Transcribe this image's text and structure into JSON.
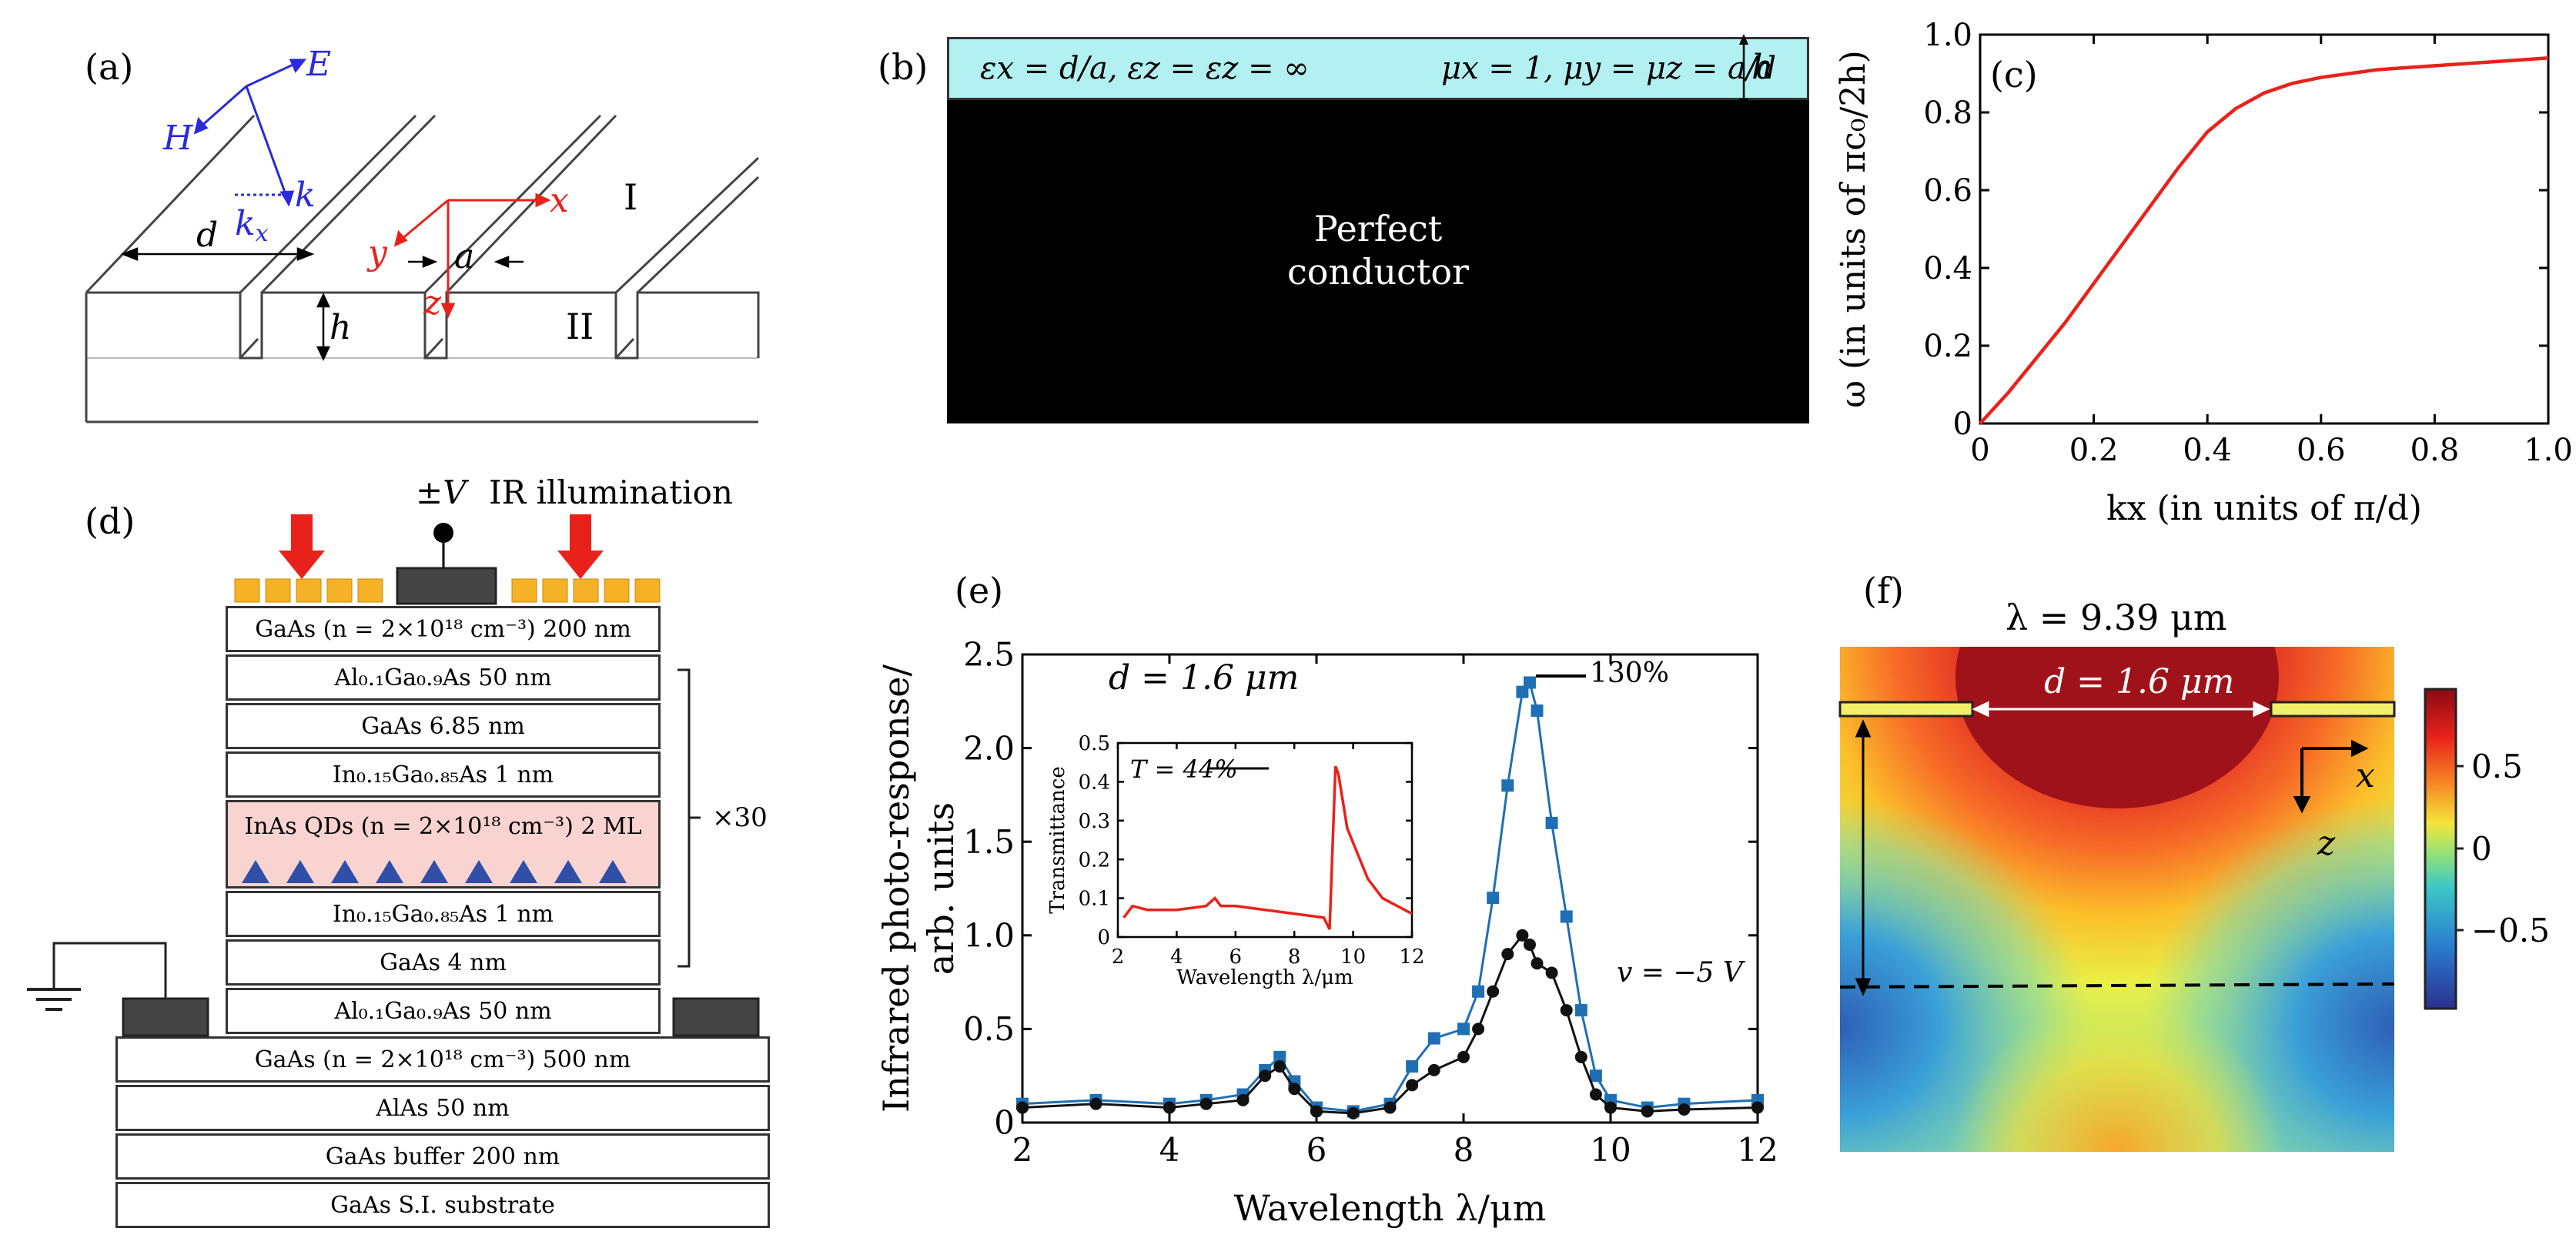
{
  "panels": {
    "a": {
      "label": "(a)",
      "H": "H",
      "E": "E",
      "k": "k",
      "kx": "k",
      "kx_sub": "x",
      "d": "d",
      "a": "a",
      "h": "h",
      "x": "x",
      "y": "y",
      "z": "z",
      "region1": "I",
      "region2": "II"
    },
    "b": {
      "label": "(b)",
      "eps_text": "ε",
      "metamaterial_text": "εx = d/a,  εz = εz = ∞",
      "mu_text": "μx = 1,  μy = μz = a/d",
      "h": "h",
      "conductor_line1": "Perfect",
      "conductor_line2": "conductor"
    },
    "c": {
      "label": "(c)",
      "ylabel": "ω (in units of πc₀/2h)",
      "xlabel": "kx (in units of π/d)"
    },
    "d": {
      "label": "(d)",
      "bias": "±V",
      "illumination": "IR illumination",
      "repeat": "×30",
      "layers": [
        "GaAs (n = 2×10¹⁸ cm⁻³) 200 nm",
        "Al₀.₁Ga₀.₉As 50 nm",
        "GaAs 6.85 nm",
        "In₀.₁₅Ga₀.₈₅As 1 nm",
        "InAs QDs (n = 2×10¹⁸ cm⁻³) 2 ML",
        "In₀.₁₅Ga₀.₈₅As 1 nm",
        "GaAs 4 nm",
        "Al₀.₁Ga₀.₉As 50 nm",
        "GaAs (n = 2×10¹⁸ cm⁻³) 500 nm",
        "AlAs 50 nm",
        "GaAs buffer 200 nm",
        "GaAs S.I. substrate"
      ]
    },
    "e": {
      "label": "(e)",
      "ylabel_line1": "Infrared photo-response/",
      "ylabel_line2": "arb. units",
      "xlabel": "Wavelength λ/μm",
      "d_annot": "d = 1.6 μm",
      "peak_annot": "130%",
      "bias_annot": "v = −5 V",
      "inset_T": "T = 44%",
      "inset_ylabel": "Transmittance",
      "inset_xlabel": "Wavelength λ/μm"
    },
    "f": {
      "label": "(f)",
      "lambda": "λ = 9.39 μm",
      "d_annot": "d = 1.6 μm",
      "x": "x",
      "z": "z",
      "colorbar_ticks": [
        "0.5",
        "0",
        "−0.5"
      ]
    }
  },
  "chart_data": [
    {
      "type": "line",
      "panel": "c",
      "xlabel": "kx (in units of π/d)",
      "ylabel": "ω (in units of πc₀/2h)",
      "xlim": [
        0,
        1.0
      ],
      "ylim": [
        0,
        1.0
      ],
      "xticks": [
        "0",
        "0.2",
        "0.4",
        "0.6",
        "0.8",
        "1.0"
      ],
      "yticks": [
        "0",
        "0.2",
        "0.4",
        "0.6",
        "0.8",
        "1.0"
      ],
      "series": [
        {
          "color": "#e8221b",
          "x": [
            0,
            0.05,
            0.1,
            0.15,
            0.2,
            0.25,
            0.3,
            0.35,
            0.4,
            0.45,
            0.5,
            0.55,
            0.6,
            0.65,
            0.7,
            0.75,
            0.8,
            0.85,
            0.9,
            0.95,
            1.0
          ],
          "y": [
            0,
            0.08,
            0.17,
            0.26,
            0.36,
            0.46,
            0.56,
            0.66,
            0.75,
            0.81,
            0.85,
            0.875,
            0.89,
            0.9,
            0.91,
            0.915,
            0.92,
            0.925,
            0.93,
            0.935,
            0.94
          ]
        }
      ]
    },
    {
      "type": "line",
      "panel": "e",
      "xlabel": "Wavelength λ/μm",
      "ylabel": "Infrared photo-response/ arb. units",
      "xlim": [
        2,
        12
      ],
      "ylim": [
        0,
        2.5
      ],
      "xticks": [
        "2",
        "4",
        "6",
        "8",
        "10",
        "12"
      ],
      "yticks": [
        "0",
        "0.5",
        "1.0",
        "1.5",
        "2.0",
        "2.5"
      ],
      "series": [
        {
          "color": "#1f6fb5",
          "x": [
            2,
            3,
            4,
            4.5,
            5,
            5.3,
            5.5,
            5.7,
            6,
            6.5,
            7,
            7.3,
            7.6,
            8,
            8.2,
            8.4,
            8.6,
            8.8,
            8.9,
            9.0,
            9.2,
            9.4,
            9.6,
            9.8,
            10,
            10.5,
            11,
            12
          ],
          "y": [
            0.1,
            0.12,
            0.1,
            0.12,
            0.15,
            0.28,
            0.35,
            0.22,
            0.08,
            0.06,
            0.1,
            0.3,
            0.45,
            0.5,
            0.7,
            1.2,
            1.8,
            2.3,
            2.35,
            2.2,
            1.6,
            1.1,
            0.6,
            0.25,
            0.12,
            0.08,
            0.1,
            0.12
          ]
        },
        {
          "color": "#111111",
          "x": [
            2,
            3,
            4,
            4.5,
            5,
            5.3,
            5.5,
            5.7,
            6,
            6.5,
            7,
            7.3,
            7.6,
            8,
            8.2,
            8.4,
            8.6,
            8.8,
            8.9,
            9.0,
            9.2,
            9.4,
            9.6,
            9.8,
            10,
            10.5,
            11,
            12
          ],
          "y": [
            0.08,
            0.1,
            0.08,
            0.1,
            0.12,
            0.25,
            0.3,
            0.18,
            0.06,
            0.05,
            0.08,
            0.2,
            0.28,
            0.35,
            0.5,
            0.7,
            0.9,
            1.0,
            0.95,
            0.85,
            0.8,
            0.6,
            0.35,
            0.15,
            0.08,
            0.06,
            0.07,
            0.08
          ]
        }
      ]
    },
    {
      "type": "line",
      "panel": "e-inset",
      "xlabel": "Wavelength λ/μm",
      "ylabel": "Transmittance",
      "xlim": [
        2,
        12
      ],
      "ylim": [
        0,
        0.5
      ],
      "xticks": [
        "2",
        "4",
        "6",
        "8",
        "10",
        "12"
      ],
      "yticks": [
        "0",
        "0.1",
        "0.2",
        "0.3",
        "0.4",
        "0.5"
      ],
      "series": [
        {
          "color": "#e8221b",
          "x": [
            2.2,
            2.5,
            3,
            4,
            5,
            5.3,
            5.5,
            6,
            7,
            8,
            9,
            9.2,
            9.4,
            9.5,
            9.8,
            10.5,
            11,
            12
          ],
          "y": [
            0.05,
            0.08,
            0.07,
            0.07,
            0.08,
            0.1,
            0.08,
            0.08,
            0.07,
            0.06,
            0.05,
            0.02,
            0.44,
            0.42,
            0.28,
            0.15,
            0.1,
            0.06
          ]
        }
      ]
    }
  ]
}
